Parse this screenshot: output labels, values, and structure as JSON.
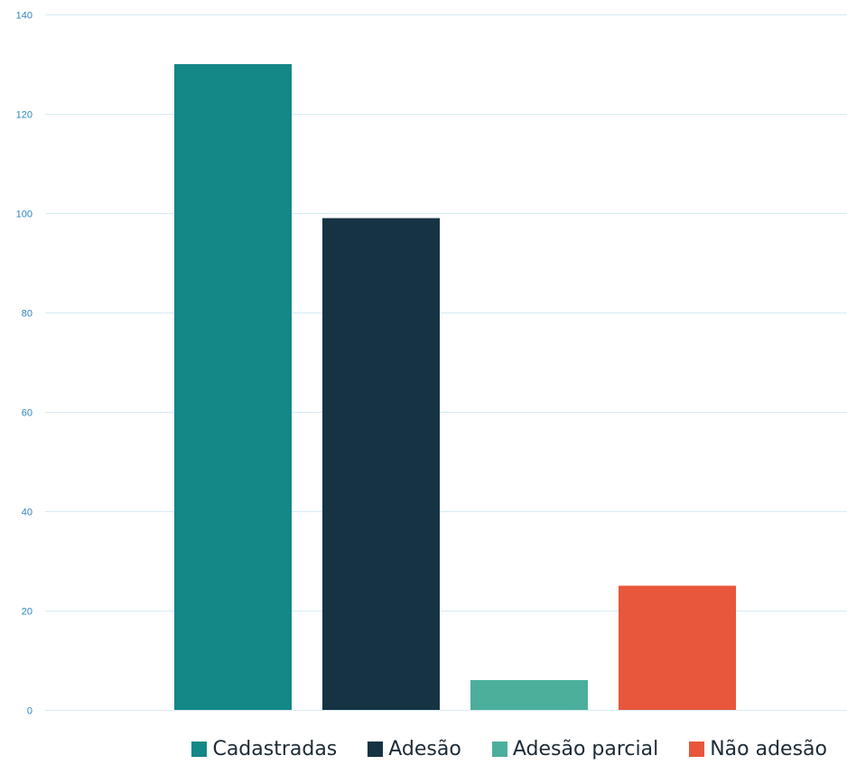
{
  "chart_data": {
    "type": "bar",
    "categories": [
      "Cadastradas",
      "Adesão",
      "Adesão parcial",
      "Não adesão"
    ],
    "values": [
      130,
      99,
      6,
      25
    ],
    "colors": [
      "#148787",
      "#163344",
      "#4baf9b",
      "#e8563b"
    ],
    "ylim": [
      0,
      140
    ],
    "yticks": [
      "0",
      "20",
      "40",
      "60",
      "80",
      "100",
      "120",
      "140"
    ],
    "grid": true,
    "legend_position": "bottom",
    "legend": [
      "Cadastradas",
      "Adesão",
      "Adesão parcial",
      "Não adesão"
    ]
  }
}
